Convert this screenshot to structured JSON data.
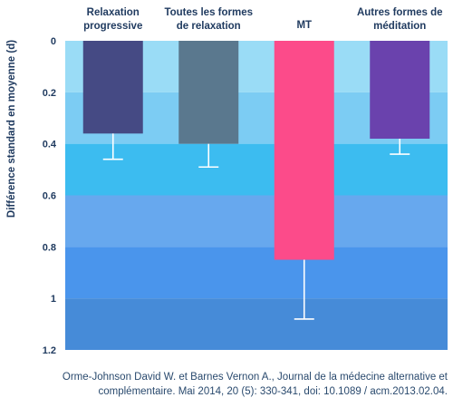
{
  "chart_data": {
    "type": "bar",
    "orientation": "vertical-inverted",
    "categories": [
      [
        "Relaxation",
        "progressive"
      ],
      [
        "Toutes les formes",
        "de relaxation"
      ],
      [
        "MT"
      ],
      [
        "Autres formes de",
        "méditation"
      ]
    ],
    "values": [
      0.36,
      0.4,
      0.85,
      0.38
    ],
    "error_upper": [
      0.46,
      0.49,
      1.08,
      0.44
    ],
    "colors": [
      "#454a84",
      "#5a788e",
      "#fc4b8a",
      "#6a42ad"
    ],
    "ylabel": "Différence standard en moyenne (d)",
    "yticks": [
      "0",
      "0.2",
      "0.4",
      "0.6",
      "0.8",
      "1",
      "1.2"
    ],
    "ylim": [
      0,
      1.2
    ],
    "bands": [
      {
        "from": 0,
        "to": 0.2,
        "color": "#9adcf6"
      },
      {
        "from": 0.2,
        "to": 0.4,
        "color": "#7cccf3"
      },
      {
        "from": 0.4,
        "to": 0.6,
        "color": "#3cbcf0"
      },
      {
        "from": 0.6,
        "to": 0.8,
        "color": "#67a8ee"
      },
      {
        "from": 0.8,
        "to": 1.0,
        "color": "#4a95ec"
      },
      {
        "from": 1.0,
        "to": 1.2,
        "color": "#468bd8"
      }
    ],
    "grid": false,
    "legend": "none"
  },
  "citation": {
    "line1": "Orme-Johnson David W. et Barnes Vernon A., Journal de la médecine alternative et",
    "line2": "complémentaire. Mai 2014, 20 (5): 330-341, doi: 10.1089 / acm.2013.02.04."
  }
}
